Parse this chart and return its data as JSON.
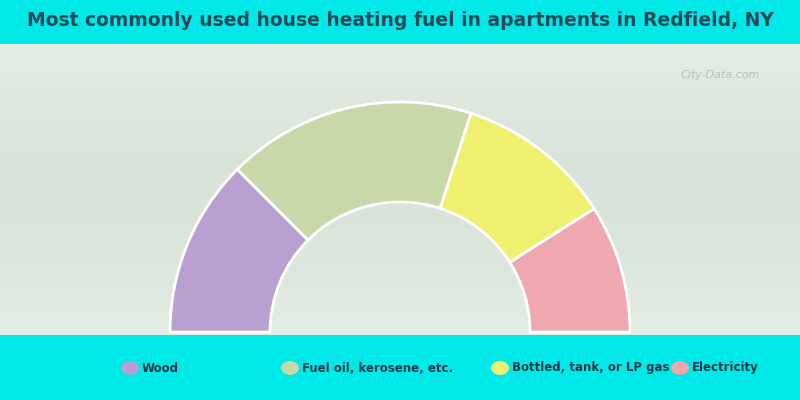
{
  "title": "Most commonly used house heating fuel in apartments in Redfield, NY",
  "title_color": "#2a4a5a",
  "bg_cyan": "#00e8e8",
  "bg_green_light": "#e8f5e8",
  "bg_green_mid": "#d0e8d0",
  "legend_bg": "#00e8e8",
  "watermark": "City-Data.com",
  "segments": [
    {
      "label": "Wood",
      "value": 25,
      "color": "#b8a0d0"
    },
    {
      "label": "Fuel oil, kerosene, etc.",
      "value": 35,
      "color": "#c8d8a8"
    },
    {
      "label": "Bottled, tank, or LP gas",
      "value": 22,
      "color": "#f0f070"
    },
    {
      "label": "Electricity",
      "value": 18,
      "color": "#f0a8b0"
    }
  ],
  "figsize": [
    8,
    4
  ],
  "dpi": 100
}
